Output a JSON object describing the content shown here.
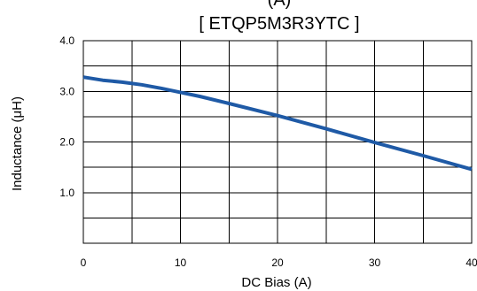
{
  "chart_data": {
    "type": "line",
    "title_top_fragment": "(A)",
    "title": "[ ETQP5M3R3YTC ]",
    "xlabel": "DC Bias  (A)",
    "ylabel": "Inductance (μH)",
    "xlim": [
      0,
      40
    ],
    "ylim": [
      0,
      4.0
    ],
    "x_ticks": [
      0,
      10,
      20,
      30,
      40
    ],
    "x_tick_labels": [
      "0",
      "10",
      "20",
      "30",
      "40"
    ],
    "y_ticks": [
      1.0,
      2.0,
      3.0,
      4.0
    ],
    "y_tick_labels": [
      "1.0",
      "2.0",
      "3.0",
      "4.0"
    ],
    "x_grid": [
      0,
      5,
      10,
      15,
      20,
      25,
      30,
      35,
      40
    ],
    "y_grid": [
      0,
      0.5,
      1.0,
      1.5,
      2.0,
      2.5,
      3.0,
      3.5,
      4.0
    ],
    "grid": true,
    "series": [
      {
        "x": [
          0,
          2,
          4,
          6,
          8,
          10,
          12,
          15,
          20,
          25,
          30,
          35,
          40
        ],
        "y": [
          3.28,
          3.22,
          3.18,
          3.13,
          3.06,
          2.98,
          2.9,
          2.76,
          2.52,
          2.26,
          1.99,
          1.73,
          1.46
        ],
        "color": "#1f5aa6"
      }
    ]
  }
}
